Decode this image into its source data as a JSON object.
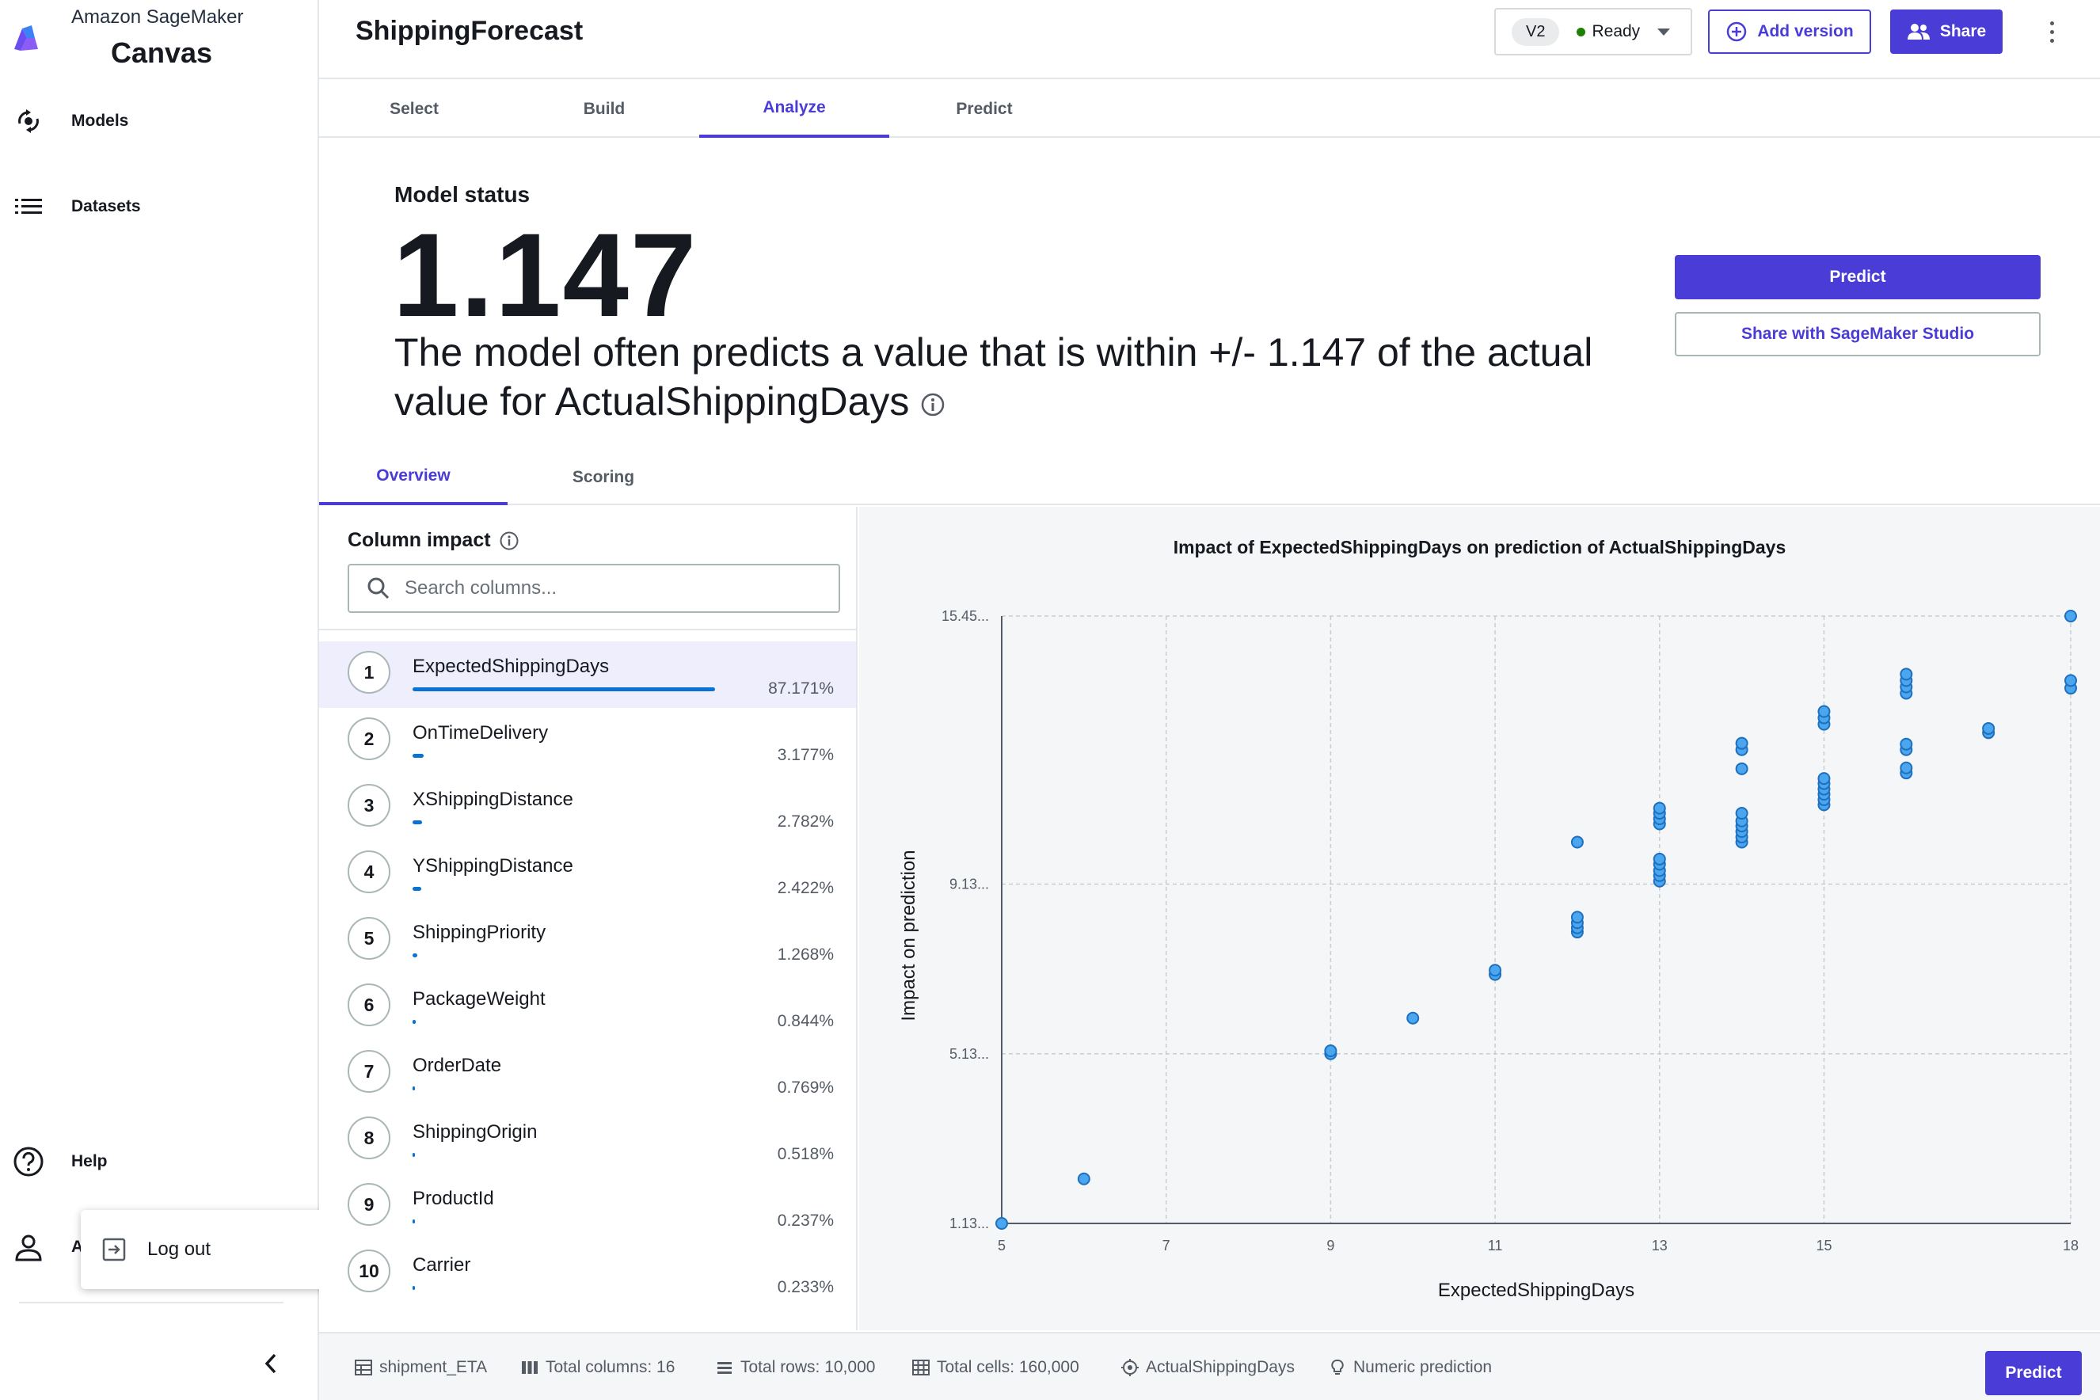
{
  "sidebar": {
    "brand_line1": "Amazon SageMaker",
    "brand_line2": "Canvas",
    "items": [
      {
        "label": "Models",
        "icon": "models-icon"
      },
      {
        "label": "Datasets",
        "icon": "list-icon"
      }
    ],
    "help_label": "Help",
    "account_label": "A",
    "logout_label": "Log out"
  },
  "header": {
    "title": "ShippingForecast",
    "version": "V2",
    "status": "Ready",
    "add_version_label": "Add version",
    "share_label": "Share"
  },
  "steps": [
    "Select",
    "Build",
    "Analyze",
    "Predict"
  ],
  "active_step": "Analyze",
  "model_status": {
    "title": "Model status",
    "value": "1.147",
    "description": "The model often predicts a value that is within +/- 1.147 of the actual value for ActualShippingDays",
    "predict_label": "Predict",
    "share_studio_label": "Share with SageMaker Studio"
  },
  "subtabs": [
    "Overview",
    "Scoring"
  ],
  "column_impact": {
    "title": "Column impact",
    "search_placeholder": "Search columns...",
    "rows": [
      {
        "rank": "1",
        "name": "ExpectedShippingDays",
        "pct": "87.171%",
        "value": 87.171
      },
      {
        "rank": "2",
        "name": "OnTimeDelivery",
        "pct": "3.177%",
        "value": 3.177
      },
      {
        "rank": "3",
        "name": "XShippingDistance",
        "pct": "2.782%",
        "value": 2.782
      },
      {
        "rank": "4",
        "name": "YShippingDistance",
        "pct": "2.422%",
        "value": 2.422
      },
      {
        "rank": "5",
        "name": "ShippingPriority",
        "pct": "1.268%",
        "value": 1.268
      },
      {
        "rank": "6",
        "name": "PackageWeight",
        "pct": "0.844%",
        "value": 0.844
      },
      {
        "rank": "7",
        "name": "OrderDate",
        "pct": "0.769%",
        "value": 0.769
      },
      {
        "rank": "8",
        "name": "ShippingOrigin",
        "pct": "0.518%",
        "value": 0.518
      },
      {
        "rank": "9",
        "name": "ProductId",
        "pct": "0.237%",
        "value": 0.237
      },
      {
        "rank": "10",
        "name": "Carrier",
        "pct": "0.233%",
        "value": 0.233
      }
    ]
  },
  "chart_data": {
    "type": "scatter",
    "title": "Impact of ExpectedShippingDays on prediction of ActualShippingDays",
    "xlabel": "ExpectedShippingDays",
    "ylabel": "Impact on prediction",
    "xlim": [
      5,
      18
    ],
    "ylim": [
      1.13,
      15.45
    ],
    "x_ticks": [
      "5",
      "7",
      "9",
      "11",
      "13",
      "15",
      "18"
    ],
    "x_tick_values": [
      5,
      7,
      9,
      11,
      13,
      15,
      18
    ],
    "y_ticks": [
      "1.13...",
      "5.13...",
      "9.13...",
      "15.45..."
    ],
    "y_tick_values": [
      1.13,
      5.13,
      9.13,
      15.45
    ],
    "grid": true,
    "points": [
      [
        5,
        1.13
      ],
      [
        6,
        2.18
      ],
      [
        9,
        5.13
      ],
      [
        9,
        5.2
      ],
      [
        10,
        5.97
      ],
      [
        11,
        7.0
      ],
      [
        11,
        7.1
      ],
      [
        12,
        8.0
      ],
      [
        12,
        8.1
      ],
      [
        12,
        8.22
      ],
      [
        12,
        8.35
      ],
      [
        12,
        10.12
      ],
      [
        13,
        9.2
      ],
      [
        13,
        9.33
      ],
      [
        13,
        9.45
      ],
      [
        13,
        9.6
      ],
      [
        13,
        9.72
      ],
      [
        13,
        10.55
      ],
      [
        13,
        10.67
      ],
      [
        13,
        10.8
      ],
      [
        13,
        10.92
      ],
      [
        14,
        10.12
      ],
      [
        14,
        10.24
      ],
      [
        14,
        10.37
      ],
      [
        14,
        10.5
      ],
      [
        14,
        10.62
      ],
      [
        14,
        10.8
      ],
      [
        14,
        11.85
      ],
      [
        14,
        12.3
      ],
      [
        14,
        12.45
      ],
      [
        15,
        11.0
      ],
      [
        15,
        11.12
      ],
      [
        15,
        11.25
      ],
      [
        15,
        11.37
      ],
      [
        15,
        11.5
      ],
      [
        15,
        11.62
      ],
      [
        15,
        12.9
      ],
      [
        15,
        13.05
      ],
      [
        15,
        13.2
      ],
      [
        16,
        11.75
      ],
      [
        16,
        11.87
      ],
      [
        16,
        12.3
      ],
      [
        16,
        12.43
      ],
      [
        16,
        13.63
      ],
      [
        16,
        13.78
      ],
      [
        16,
        13.93
      ],
      [
        16,
        14.08
      ],
      [
        17,
        12.7
      ],
      [
        17,
        12.8
      ],
      [
        18,
        13.75
      ],
      [
        18,
        13.93
      ],
      [
        18,
        15.45
      ]
    ]
  },
  "footer": {
    "dataset": "shipment_ETA",
    "total_columns": "Total columns: 16",
    "total_rows": "Total rows: 10,000",
    "total_cells": "Total cells: 160,000",
    "target": "ActualShippingDays",
    "problem_type": "Numeric prediction",
    "predict_label": "Predict"
  },
  "colors": {
    "accent": "#4a3cd6",
    "bar": "#0972d3",
    "point_fill": "#4aa6ee",
    "point_stroke": "#1f6fbf",
    "arrow": "#f2871f",
    "ready": "#1d8102"
  }
}
